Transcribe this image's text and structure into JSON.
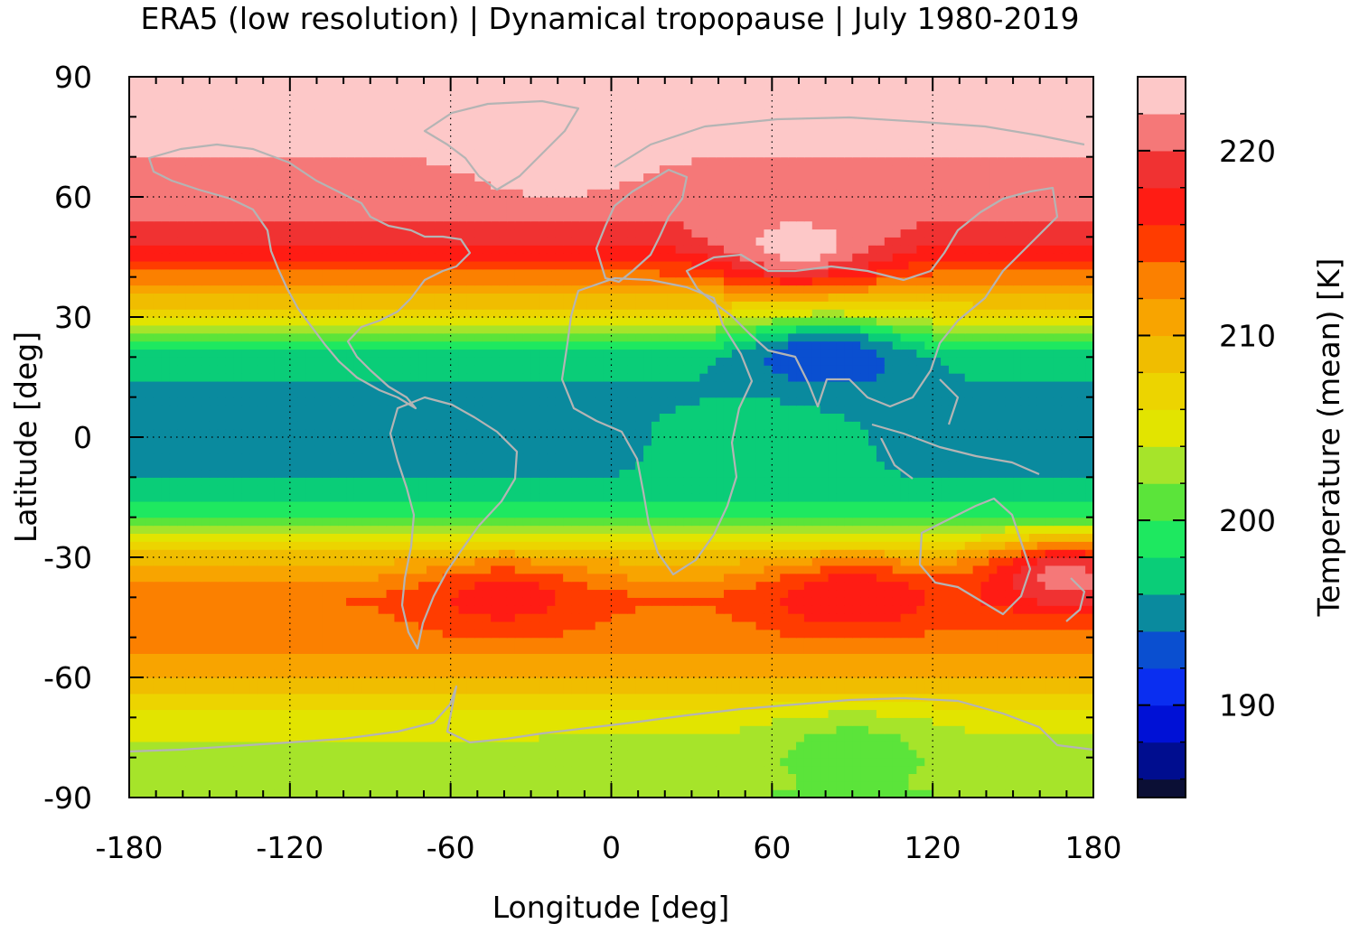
{
  "chart_data": {
    "type": "heatmap",
    "title": "ERA5 (low resolution) | Dynamical tropopause | July 1980-2019",
    "xlabel": "Longitude [deg]",
    "ylabel": "Latitude [deg]",
    "colorbar_label": "Temperature (mean) [K]",
    "xlim": [
      -180,
      180
    ],
    "ylim": [
      -90,
      90
    ],
    "x_ticks": [
      -180,
      -120,
      -60,
      0,
      60,
      120,
      180
    ],
    "y_ticks": [
      90,
      60,
      30,
      0,
      -30,
      -60,
      -90
    ],
    "colorbar_range": [
      185,
      224
    ],
    "colorbar_ticks": [
      190,
      200,
      210,
      220
    ],
    "grid": true,
    "overlay": "coastlines",
    "color_levels": [
      {
        "from": 185,
        "to": 186,
        "color": "#0b0f35"
      },
      {
        "from": 186,
        "to": 188,
        "color": "#000d8f"
      },
      {
        "from": 188,
        "to": 190,
        "color": "#0011d6"
      },
      {
        "from": 190,
        "to": 192,
        "color": "#0a2ef0"
      },
      {
        "from": 192,
        "to": 194,
        "color": "#0a4fd0"
      },
      {
        "from": 194,
        "to": 196,
        "color": "#0a8a9e"
      },
      {
        "from": 196,
        "to": 198,
        "color": "#0acd78"
      },
      {
        "from": 198,
        "to": 200,
        "color": "#1ee860"
      },
      {
        "from": 200,
        "to": 202,
        "color": "#5be43a"
      },
      {
        "from": 202,
        "to": 204,
        "color": "#a6e42a"
      },
      {
        "from": 204,
        "to": 206,
        "color": "#e2e400"
      },
      {
        "from": 206,
        "to": 208,
        "color": "#ecd400"
      },
      {
        "from": 208,
        "to": 210,
        "color": "#f0bd00"
      },
      {
        "from": 210,
        "to": 212,
        "color": "#f8a400"
      },
      {
        "from": 212,
        "to": 214,
        "color": "#fb8000"
      },
      {
        "from": 214,
        "to": 216,
        "color": "#ff3c00"
      },
      {
        "from": 216,
        "to": 218,
        "color": "#ff1c14"
      },
      {
        "from": 218,
        "to": 220,
        "color": "#f03232"
      },
      {
        "from": 220,
        "to": 222,
        "color": "#f57878"
      },
      {
        "from": 222,
        "to": 224,
        "color": "#fdc8c8"
      }
    ],
    "zonal_profile": {
      "lat": [
        -90,
        -80,
        -70,
        -60,
        -50,
        -40,
        -30,
        -20,
        -10,
        0,
        10,
        20,
        30,
        40,
        50,
        60,
        70,
        80,
        90
      ],
      "temperature": [
        202,
        203,
        205,
        210,
        213,
        214,
        209,
        199,
        196,
        195.5,
        195.5,
        197,
        206,
        213,
        219,
        221,
        222,
        223,
        223
      ]
    },
    "features": [
      {
        "lon": 80,
        "lat": 20,
        "temperature": 192
      },
      {
        "lon": 70,
        "lat": 48,
        "temperature": 223
      },
      {
        "lon": -20,
        "lat": 68,
        "temperature": 223
      },
      {
        "lon": 55,
        "lat": 0,
        "temperature": 198
      },
      {
        "lon": -40,
        "lat": -40,
        "temperature": 217
      },
      {
        "lon": 90,
        "lat": -40,
        "temperature": 218
      },
      {
        "lon": 170,
        "lat": -35,
        "temperature": 221
      },
      {
        "lon": 90,
        "lat": -78,
        "temperature": 201
      }
    ]
  }
}
